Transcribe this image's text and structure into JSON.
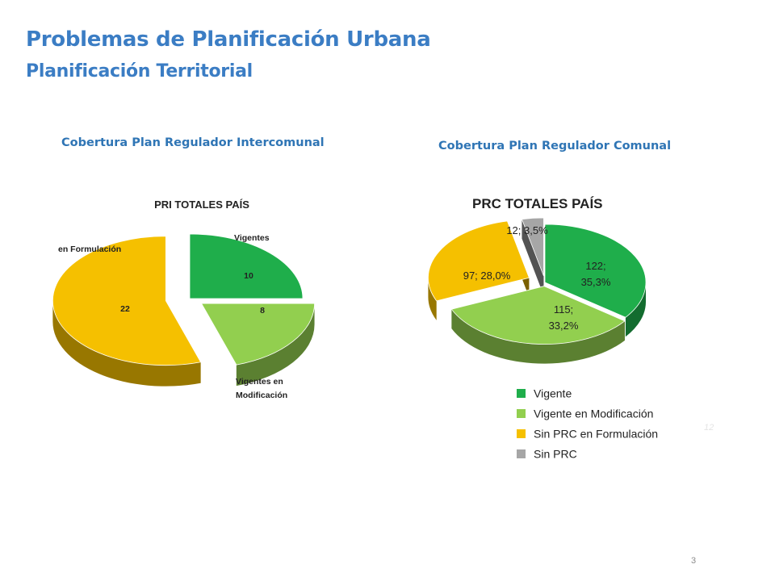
{
  "page": {
    "title": "Problemas de Planificación Urbana",
    "subtitle": "Planificación Territorial",
    "page_number": "3",
    "ghost_text": "12"
  },
  "captions": {
    "left": "Cobertura Plan Regulador  Intercomunal",
    "right": "Cobertura Plan Regulador Comunal"
  },
  "colors": {
    "title": "#3b7dc4",
    "caption": "#2f75b5",
    "dark_green": "#1fae4b",
    "light_green": "#92cf4f",
    "yellow": "#f5c000",
    "gray": "#a6a6a6"
  },
  "chart_data": [
    {
      "type": "pie",
      "title": "PRI TOTALES PAÍS",
      "slices": [
        {
          "label": "Vigentes",
          "value": 10,
          "value_label": "10",
          "color": "#1fae4b"
        },
        {
          "label": "Vigentes en Modificación",
          "value": 8,
          "value_label": "8",
          "color": "#92cf4f"
        },
        {
          "label": "en Formulación",
          "value": 22,
          "value_label": "22",
          "color": "#f5c000"
        }
      ],
      "legend": "none"
    },
    {
      "type": "pie",
      "title": "PRC TOTALES PAÍS",
      "slices": [
        {
          "label": "Vigente",
          "value": 122,
          "percent": 35.3,
          "value_label": "122; 35,3%",
          "color": "#1fae4b"
        },
        {
          "label": "Vigente en Modificación",
          "value": 115,
          "percent": 33.2,
          "value_label": "115; 33,2%",
          "color": "#92cf4f"
        },
        {
          "label": "Sin PRC en Formulación",
          "value": 97,
          "percent": 28.0,
          "value_label": "97; 28,0%",
          "color": "#f5c000"
        },
        {
          "label": "Sin PRC",
          "value": 12,
          "percent": 3.5,
          "value_label": "12; 3,5%",
          "color": "#a6a6a6"
        }
      ],
      "legend": "bottom"
    }
  ]
}
